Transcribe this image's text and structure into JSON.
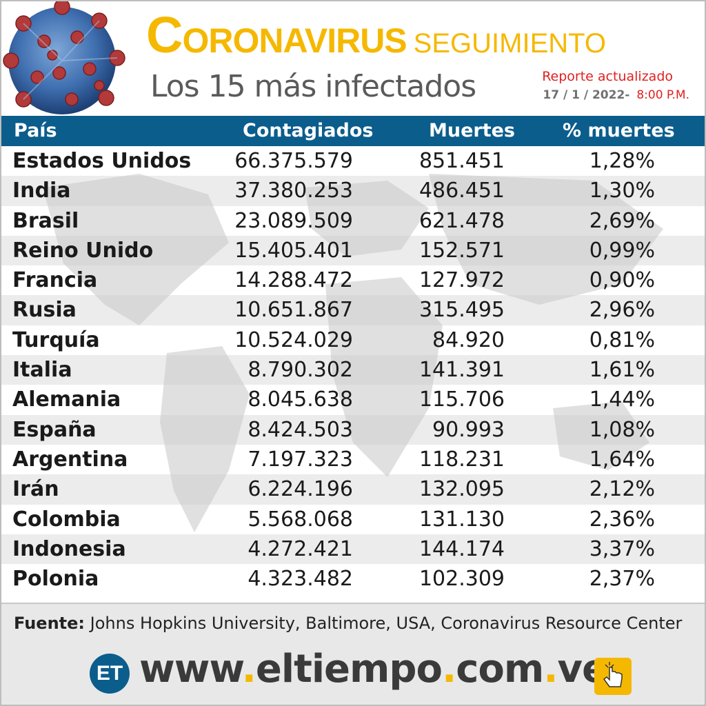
{
  "header": {
    "title_cap": "C",
    "title_rest": "ORONAVIRUS",
    "title_sub": "SEGUIMIENTO",
    "subtitle": "Los 15 más infectados",
    "report_label": "Reporte actualizado",
    "report_date": "17 / 1 / 2022-",
    "report_time": "8:00 P.M."
  },
  "table": {
    "headers": {
      "country": "País",
      "cases": "Contagiados",
      "deaths": "Muertes",
      "pct": "% muertes"
    },
    "rows": [
      {
        "country": "Estados Unidos",
        "cases": "66.375.579",
        "deaths": "851.451",
        "pct": "1,28%"
      },
      {
        "country": "India",
        "cases": "37.380.253",
        "deaths": "486.451",
        "pct": "1,30%"
      },
      {
        "country": "Brasil",
        "cases": "23.089.509",
        "deaths": "621.478",
        "pct": "2,69%"
      },
      {
        "country": "Reino Unido",
        "cases": "15.405.401",
        "deaths": "152.571",
        "pct": "0,99%"
      },
      {
        "country": "Francia",
        "cases": "14.288.472",
        "deaths": "127.972",
        "pct": "0,90%"
      },
      {
        "country": "Rusia",
        "cases": "10.651.867",
        "deaths": "315.495",
        "pct": "2,96%"
      },
      {
        "country": "Turquía",
        "cases": "10.524.029",
        "deaths": "84.920",
        "pct": "0,81%"
      },
      {
        "country": "Italia",
        "cases": "8.790.302",
        "deaths": "141.391",
        "pct": "1,61%"
      },
      {
        "country": "Alemania",
        "cases": "8.045.638",
        "deaths": "115.706",
        "pct": "1,44%"
      },
      {
        "country": "España",
        "cases": "8.424.503",
        "deaths": "90.993",
        "pct": "1,08%"
      },
      {
        "country": "Argentina",
        "cases": "7.197.323",
        "deaths": "118.231",
        "pct": "1,64%"
      },
      {
        "country": "Irán",
        "cases": "6.224.196",
        "deaths": "132.095",
        "pct": "2,12%"
      },
      {
        "country": "Colombia",
        "cases": "5.568.068",
        "deaths": "131.130",
        "pct": "2,36%"
      },
      {
        "country": "Indonesia",
        "cases": "4.272.421",
        "deaths": "144.174",
        "pct": "3,37%"
      },
      {
        "country": "Polonia",
        "cases": "4.323.482",
        "deaths": "102.309",
        "pct": "2,37%"
      }
    ]
  },
  "footer": {
    "source_label": "Fuente:",
    "source_text": "Johns Hopkins University, Baltimore, USA, Coronavirus Resource Center",
    "logo_text": "ET",
    "url_parts": [
      "www",
      ".",
      "eltiempo",
      ".",
      "com",
      ".",
      "ve"
    ]
  },
  "colors": {
    "accent_yellow": "#f5b800",
    "header_blue": "#0b5d8c",
    "report_red": "#e02020",
    "subtitle_gray": "#5a5a5a"
  },
  "icons": [
    "coronavirus-illustration",
    "world-map-background",
    "et-logo-icon",
    "click-hand-icon"
  ]
}
